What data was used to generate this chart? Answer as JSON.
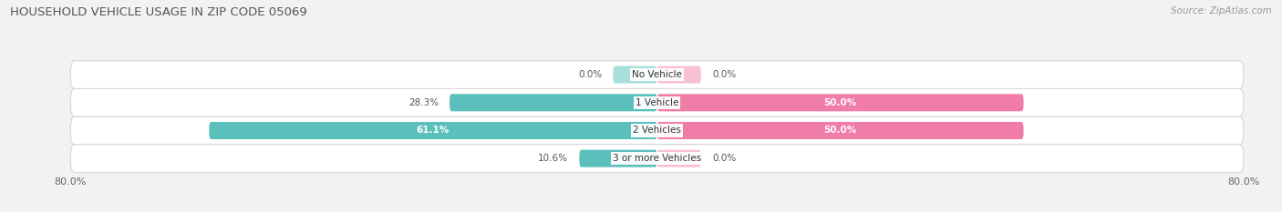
{
  "title": "HOUSEHOLD VEHICLE USAGE IN ZIP CODE 05069",
  "source": "Source: ZipAtlas.com",
  "categories": [
    "No Vehicle",
    "1 Vehicle",
    "2 Vehicles",
    "3 or more Vehicles"
  ],
  "owner_values": [
    0.0,
    28.3,
    61.1,
    10.6
  ],
  "renter_values": [
    0.0,
    50.0,
    50.0,
    0.0
  ],
  "owner_color": "#5bbfbb",
  "renter_color": "#f07ca8",
  "renter_color_light": "#f9c0d4",
  "owner_color_light": "#aadedd",
  "background_color": "#f2f2f2",
  "row_bg_color": "#ffffff",
  "row_border_color": "#d8d8d8",
  "xlim": 80.0,
  "title_fontsize": 9.5,
  "source_fontsize": 7.5,
  "label_fontsize": 7.5,
  "tick_fontsize": 8,
  "legend_fontsize": 8,
  "bar_height": 0.62,
  "min_bar_width": 6.0
}
